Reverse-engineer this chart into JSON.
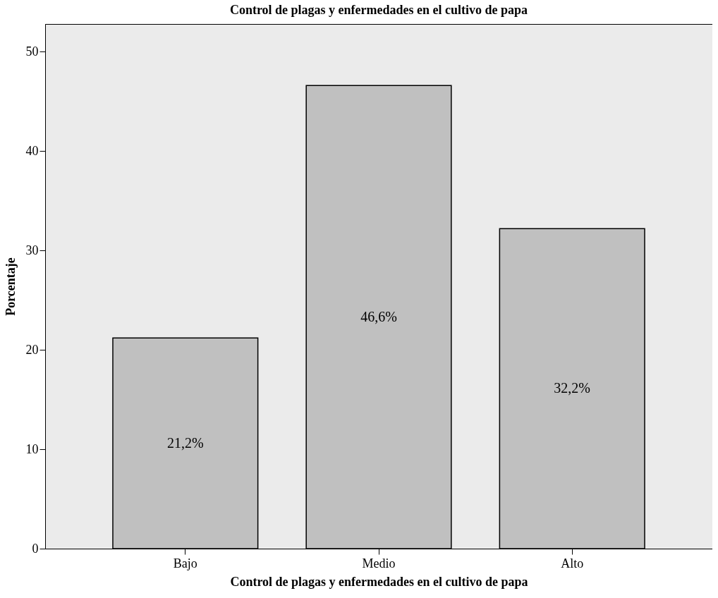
{
  "chart_data": {
    "type": "bar",
    "title": "Control de plagas y enfermedades en el cultivo de papa",
    "xlabel": "Control de plagas y enfermedades en el cultivo de papa",
    "ylabel": "Porcentaje",
    "categories": [
      "Bajo",
      "Medio",
      "Alto"
    ],
    "values": [
      21.2,
      46.6,
      32.2
    ],
    "value_labels": [
      "21,2%",
      "46,6%",
      "32,2%"
    ],
    "color": "#c0c0c0",
    "ylim": [
      0,
      52.8
    ],
    "yticks": [
      0,
      10,
      20,
      30,
      40,
      50
    ],
    "grid": false
  }
}
